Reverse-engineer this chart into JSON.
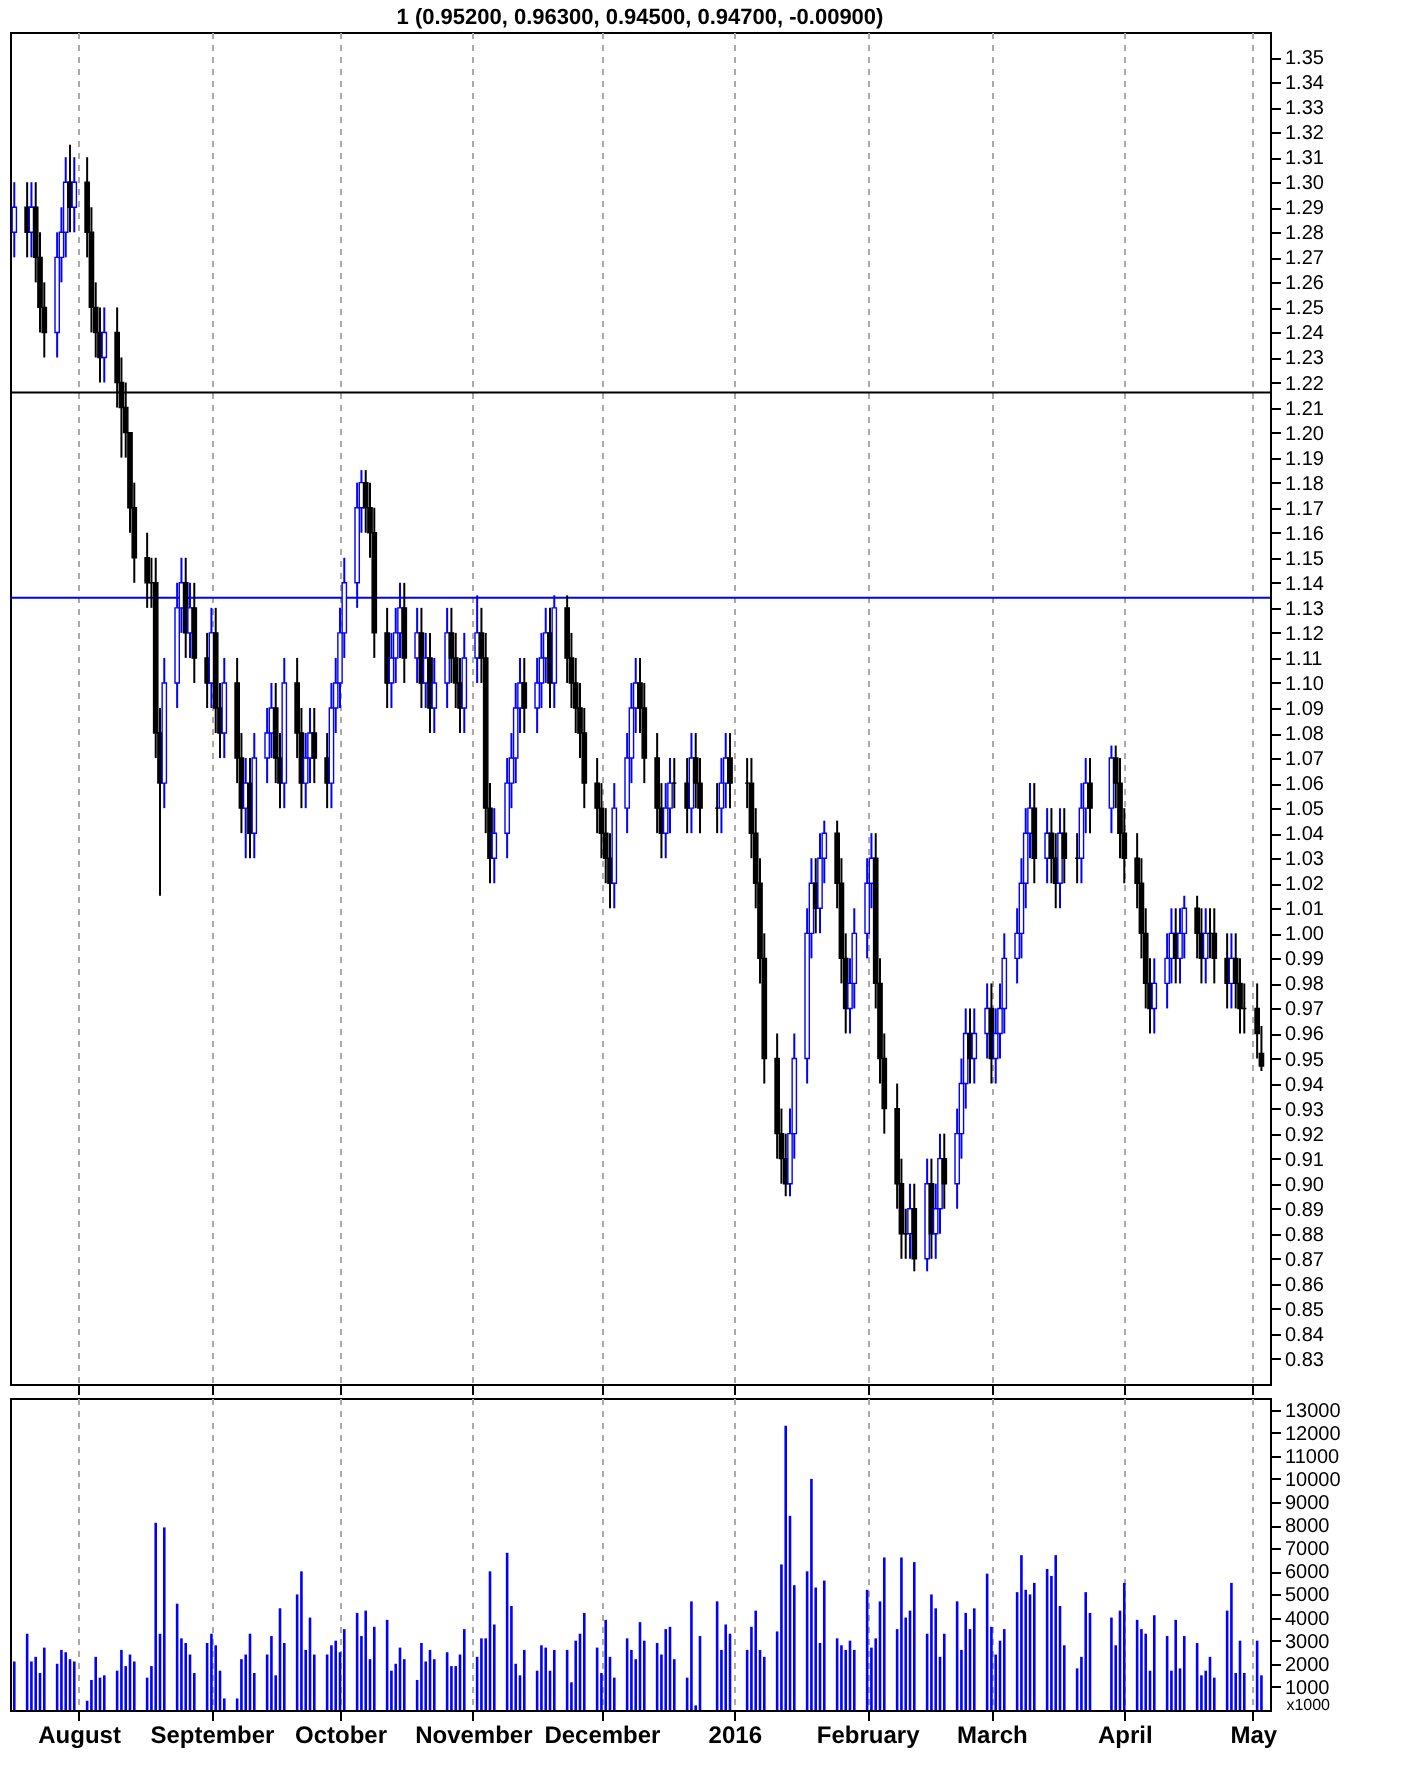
{
  "chart_data": [
    {
      "type": "candlestick",
      "title": "1 (0.95200, 0.96300, 0.94500, 0.94700, -0.00900)",
      "grid": "x",
      "tick_labels": "y",
      "xlim": [
        "2015-07-16",
        "2016-05-05"
      ],
      "xticks": [
        {
          "value": "2015-08-01",
          "label": null
        },
        {
          "value": "2015-09-01",
          "label": null
        },
        {
          "value": "2015-10-01",
          "label": null
        },
        {
          "value": "2015-11-01",
          "label": null
        },
        {
          "value": "2015-12-01",
          "label": null
        },
        {
          "value": "2016-01-01",
          "label": null
        },
        {
          "value": "2016-02-01",
          "label": null
        },
        {
          "value": "2016-03-01",
          "label": null
        },
        {
          "value": "2016-04-01",
          "label": null
        },
        {
          "value": "2016-05-01",
          "label": null
        }
      ],
      "ylim": [
        0.82,
        1.36
      ],
      "yticks": [
        0.83,
        0.84,
        0.85,
        0.86,
        0.87,
        0.88,
        0.89,
        {
          "value": 0.9,
          "label": "0.90"
        },
        0.91,
        0.92,
        0.93,
        0.94,
        0.95,
        0.96,
        0.97,
        0.98,
        0.99,
        {
          "value": 1.0,
          "label": "1.00"
        },
        1.01,
        1.02,
        1.03,
        1.04,
        1.05,
        1.06,
        1.07,
        1.08,
        1.09,
        {
          "value": 1.1,
          "label": "1.10"
        },
        1.11,
        1.12,
        1.13,
        1.14,
        1.15,
        1.16,
        1.17,
        1.18,
        1.19,
        {
          "value": 1.2,
          "label": "1.20"
        },
        1.21,
        1.22,
        1.23,
        1.24,
        1.25,
        1.26,
        1.27,
        1.28,
        1.29,
        {
          "value": 1.3,
          "label": "1.30"
        },
        1.31,
        1.32,
        1.33,
        1.34,
        1.35
      ],
      "ref_lines": [
        {
          "axis": "y",
          "value": 1.216,
          "color": "#000000"
        },
        {
          "axis": "y",
          "value": 1.134,
          "color": "#0000ff"
        }
      ],
      "x": [
        "2015-07-17",
        "2015-07-20",
        "2015-07-21",
        "2015-07-22",
        "2015-07-23",
        "2015-07-24",
        "2015-07-27",
        "2015-07-28",
        "2015-07-29",
        "2015-07-30",
        "2015-07-31",
        "2015-08-03",
        "2015-08-04",
        "2015-08-05",
        "2015-08-06",
        "2015-08-07",
        "2015-08-10",
        "2015-08-11",
        "2015-08-12",
        "2015-08-13",
        "2015-08-14",
        "2015-08-17",
        "2015-08-18",
        "2015-08-19",
        "2015-08-20",
        "2015-08-21",
        "2015-08-24",
        "2015-08-25",
        "2015-08-26",
        "2015-08-27",
        "2015-08-28",
        "2015-08-31",
        "2015-09-01",
        "2015-09-02",
        "2015-09-03",
        "2015-09-04",
        "2015-09-07",
        "2015-09-08",
        "2015-09-09",
        "2015-09-10",
        "2015-09-11",
        "2015-09-14",
        "2015-09-15",
        "2015-09-16",
        "2015-09-17",
        "2015-09-18",
        "2015-09-21",
        "2015-09-22",
        "2015-09-23",
        "2015-09-24",
        "2015-09-25",
        "2015-09-28",
        "2015-09-29",
        "2015-09-30",
        "2015-10-01",
        "2015-10-02",
        "2015-10-05",
        "2015-10-06",
        "2015-10-07",
        "2015-10-08",
        "2015-10-09",
        "2015-10-12",
        "2015-10-13",
        "2015-10-14",
        "2015-10-15",
        "2015-10-16",
        "2015-10-19",
        "2015-10-20",
        "2015-10-21",
        "2015-10-22",
        "2015-10-23",
        "2015-10-26",
        "2015-10-27",
        "2015-10-28",
        "2015-10-29",
        "2015-10-30",
        "2015-11-02",
        "2015-11-03",
        "2015-11-04",
        "2015-11-05",
        "2015-11-06",
        "2015-11-09",
        "2015-11-10",
        "2015-11-11",
        "2015-11-12",
        "2015-11-13",
        "2015-11-16",
        "2015-11-17",
        "2015-11-18",
        "2015-11-19",
        "2015-11-20",
        "2015-11-23",
        "2015-11-24",
        "2015-11-25",
        "2015-11-26",
        "2015-11-27",
        "2015-11-30",
        "2015-12-01",
        "2015-12-02",
        "2015-12-03",
        "2015-12-04",
        "2015-12-07",
        "2015-12-08",
        "2015-12-09",
        "2015-12-10",
        "2015-12-11",
        "2015-12-14",
        "2015-12-15",
        "2015-12-16",
        "2015-12-17",
        "2015-12-18",
        "2015-12-21",
        "2015-12-22",
        "2015-12-23",
        "2015-12-24",
        "2015-12-28",
        "2015-12-29",
        "2015-12-30",
        "2015-12-31",
        "2016-01-04",
        "2016-01-05",
        "2016-01-06",
        "2016-01-07",
        "2016-01-08",
        "2016-01-11",
        "2016-01-12",
        "2016-01-13",
        "2016-01-14",
        "2016-01-15",
        "2016-01-18",
        "2016-01-19",
        "2016-01-20",
        "2016-01-21",
        "2016-01-22",
        "2016-01-25",
        "2016-01-26",
        "2016-01-27",
        "2016-01-28",
        "2016-01-29",
        "2016-02-01",
        "2016-02-02",
        "2016-02-03",
        "2016-02-04",
        "2016-02-05",
        "2016-02-08",
        "2016-02-09",
        "2016-02-10",
        "2016-02-11",
        "2016-02-12",
        "2016-02-15",
        "2016-02-16",
        "2016-02-17",
        "2016-02-18",
        "2016-02-19",
        "2016-02-22",
        "2016-02-23",
        "2016-02-24",
        "2016-02-25",
        "2016-02-26",
        "2016-02-29",
        "2016-03-01",
        "2016-03-02",
        "2016-03-03",
        "2016-03-04",
        "2016-03-07",
        "2016-03-08",
        "2016-03-09",
        "2016-03-10",
        "2016-03-11",
        "2016-03-14",
        "2016-03-15",
        "2016-03-16",
        "2016-03-17",
        "2016-03-18",
        "2016-03-21",
        "2016-03-22",
        "2016-03-23",
        "2016-03-24",
        "2016-03-29",
        "2016-03-30",
        "2016-03-31",
        "2016-04-01",
        "2016-04-04",
        "2016-04-05",
        "2016-04-06",
        "2016-04-07",
        "2016-04-08",
        "2016-04-11",
        "2016-04-12",
        "2016-04-13",
        "2016-04-14",
        "2016-04-15",
        "2016-04-18",
        "2016-04-19",
        "2016-04-20",
        "2016-04-21",
        "2016-04-22",
        "2016-04-25",
        "2016-04-26",
        "2016-04-27",
        "2016-04-28",
        "2016-04-29",
        "2016-05-02",
        "2016-05-03"
      ],
      "ohlc": [
        [
          1.28,
          1.3,
          1.27,
          1.29
        ],
        [
          1.29,
          1.3,
          1.27,
          1.28
        ],
        [
          1.28,
          1.3,
          1.27,
          1.29
        ],
        [
          1.29,
          1.3,
          1.26,
          1.27
        ],
        [
          1.27,
          1.28,
          1.24,
          1.25
        ],
        [
          1.25,
          1.26,
          1.23,
          1.24
        ],
        [
          1.24,
          1.28,
          1.23,
          1.27
        ],
        [
          1.27,
          1.29,
          1.26,
          1.28
        ],
        [
          1.28,
          1.31,
          1.27,
          1.3
        ],
        [
          1.3,
          1.315,
          1.28,
          1.29
        ],
        [
          1.29,
          1.31,
          1.28,
          1.3
        ],
        [
          1.3,
          1.31,
          1.27,
          1.28
        ],
        [
          1.28,
          1.29,
          1.24,
          1.25
        ],
        [
          1.25,
          1.26,
          1.23,
          1.24
        ],
        [
          1.24,
          1.25,
          1.22,
          1.23
        ],
        [
          1.23,
          1.25,
          1.22,
          1.24
        ],
        [
          1.24,
          1.25,
          1.21,
          1.22
        ],
        [
          1.22,
          1.23,
          1.19,
          1.21
        ],
        [
          1.21,
          1.22,
          1.19,
          1.2
        ],
        [
          1.2,
          1.2,
          1.16,
          1.17
        ],
        [
          1.17,
          1.18,
          1.14,
          1.15
        ],
        [
          1.15,
          1.16,
          1.13,
          1.14
        ],
        [
          1.14,
          1.15,
          1.13,
          1.14
        ],
        [
          1.14,
          1.15,
          1.07,
          1.08
        ],
        [
          1.08,
          1.09,
          1.015,
          1.06
        ],
        [
          1.06,
          1.11,
          1.05,
          1.1
        ],
        [
          1.1,
          1.14,
          1.09,
          1.13
        ],
        [
          1.13,
          1.15,
          1.12,
          1.14
        ],
        [
          1.14,
          1.15,
          1.11,
          1.12
        ],
        [
          1.12,
          1.14,
          1.11,
          1.13
        ],
        [
          1.13,
          1.14,
          1.1,
          1.11
        ],
        [
          1.11,
          1.12,
          1.09,
          1.1
        ],
        [
          1.1,
          1.13,
          1.09,
          1.12
        ],
        [
          1.12,
          1.13,
          1.08,
          1.09
        ],
        [
          1.09,
          1.1,
          1.07,
          1.08
        ],
        [
          1.08,
          1.11,
          1.07,
          1.1
        ],
        [
          1.1,
          1.11,
          1.06,
          1.07
        ],
        [
          1.07,
          1.08,
          1.04,
          1.05
        ],
        [
          1.05,
          1.07,
          1.03,
          1.06
        ],
        [
          1.06,
          1.07,
          1.03,
          1.04
        ],
        [
          1.04,
          1.08,
          1.03,
          1.07
        ],
        [
          1.07,
          1.09,
          1.06,
          1.08
        ],
        [
          1.08,
          1.1,
          1.07,
          1.09
        ],
        [
          1.09,
          1.1,
          1.06,
          1.07
        ],
        [
          1.07,
          1.08,
          1.05,
          1.06
        ],
        [
          1.06,
          1.11,
          1.05,
          1.1
        ],
        [
          1.1,
          1.11,
          1.07,
          1.08
        ],
        [
          1.08,
          1.09,
          1.05,
          1.06
        ],
        [
          1.06,
          1.08,
          1.05,
          1.07
        ],
        [
          1.07,
          1.09,
          1.06,
          1.08
        ],
        [
          1.08,
          1.09,
          1.06,
          1.07
        ],
        [
          1.07,
          1.08,
          1.05,
          1.06
        ],
        [
          1.06,
          1.1,
          1.05,
          1.09
        ],
        [
          1.09,
          1.11,
          1.08,
          1.1
        ],
        [
          1.1,
          1.13,
          1.09,
          1.12
        ],
        [
          1.12,
          1.15,
          1.11,
          1.14
        ],
        [
          1.14,
          1.18,
          1.13,
          1.17
        ],
        [
          1.17,
          1.185,
          1.16,
          1.18
        ],
        [
          1.18,
          1.185,
          1.16,
          1.17
        ],
        [
          1.17,
          1.18,
          1.15,
          1.16
        ],
        [
          1.16,
          1.17,
          1.11,
          1.12
        ],
        [
          1.12,
          1.13,
          1.09,
          1.1
        ],
        [
          1.1,
          1.12,
          1.09,
          1.11
        ],
        [
          1.11,
          1.13,
          1.1,
          1.12
        ],
        [
          1.12,
          1.14,
          1.11,
          1.13
        ],
        [
          1.13,
          1.14,
          1.1,
          1.11
        ],
        [
          1.11,
          1.13,
          1.1,
          1.12
        ],
        [
          1.12,
          1.13,
          1.09,
          1.1
        ],
        [
          1.1,
          1.12,
          1.09,
          1.11
        ],
        [
          1.11,
          1.12,
          1.08,
          1.09
        ],
        [
          1.09,
          1.11,
          1.08,
          1.1
        ],
        [
          1.1,
          1.13,
          1.09,
          1.12
        ],
        [
          1.12,
          1.13,
          1.1,
          1.11
        ],
        [
          1.11,
          1.12,
          1.09,
          1.1
        ],
        [
          1.1,
          1.11,
          1.08,
          1.09
        ],
        [
          1.09,
          1.12,
          1.08,
          1.11
        ],
        [
          1.11,
          1.135,
          1.1,
          1.12
        ],
        [
          1.12,
          1.13,
          1.1,
          1.11
        ],
        [
          1.11,
          1.12,
          1.04,
          1.05
        ],
        [
          1.05,
          1.06,
          1.02,
          1.03
        ],
        [
          1.03,
          1.05,
          1.02,
          1.04
        ],
        [
          1.04,
          1.07,
          1.03,
          1.06
        ],
        [
          1.06,
          1.08,
          1.05,
          1.07
        ],
        [
          1.07,
          1.1,
          1.06,
          1.09
        ],
        [
          1.09,
          1.11,
          1.08,
          1.1
        ],
        [
          1.1,
          1.11,
          1.08,
          1.09
        ],
        [
          1.09,
          1.11,
          1.08,
          1.1
        ],
        [
          1.1,
          1.12,
          1.09,
          1.11
        ],
        [
          1.11,
          1.13,
          1.1,
          1.12
        ],
        [
          1.12,
          1.13,
          1.09,
          1.1
        ],
        [
          1.1,
          1.135,
          1.09,
          1.13
        ],
        [
          1.13,
          1.135,
          1.1,
          1.11
        ],
        [
          1.11,
          1.12,
          1.09,
          1.1
        ],
        [
          1.1,
          1.11,
          1.08,
          1.09
        ],
        [
          1.09,
          1.1,
          1.07,
          1.08
        ],
        [
          1.08,
          1.09,
          1.05,
          1.06
        ],
        [
          1.06,
          1.07,
          1.04,
          1.05
        ],
        [
          1.05,
          1.06,
          1.03,
          1.04
        ],
        [
          1.04,
          1.05,
          1.02,
          1.03
        ],
        [
          1.03,
          1.04,
          1.01,
          1.02
        ],
        [
          1.02,
          1.06,
          1.01,
          1.05
        ],
        [
          1.05,
          1.08,
          1.04,
          1.07
        ],
        [
          1.07,
          1.1,
          1.06,
          1.09
        ],
        [
          1.09,
          1.11,
          1.08,
          1.1
        ],
        [
          1.1,
          1.11,
          1.08,
          1.09
        ],
        [
          1.09,
          1.1,
          1.06,
          1.07
        ],
        [
          1.07,
          1.08,
          1.04,
          1.05
        ],
        [
          1.05,
          1.06,
          1.03,
          1.04
        ],
        [
          1.04,
          1.06,
          1.03,
          1.05
        ],
        [
          1.05,
          1.07,
          1.04,
          1.06
        ],
        [
          1.06,
          1.07,
          1.05,
          1.06
        ],
        [
          1.06,
          1.07,
          1.04,
          1.05
        ],
        [
          1.05,
          1.08,
          1.04,
          1.07
        ],
        [
          1.07,
          1.08,
          1.05,
          1.06
        ],
        [
          1.06,
          1.07,
          1.04,
          1.05
        ],
        [
          1.05,
          1.06,
          1.04,
          1.05
        ],
        [
          1.05,
          1.07,
          1.04,
          1.06
        ],
        [
          1.06,
          1.08,
          1.05,
          1.07
        ],
        [
          1.07,
          1.08,
          1.05,
          1.06
        ],
        [
          1.06,
          1.07,
          1.05,
          1.06
        ],
        [
          1.06,
          1.07,
          1.03,
          1.04
        ],
        [
          1.04,
          1.05,
          1.01,
          1.02
        ],
        [
          1.02,
          1.03,
          0.98,
          0.99
        ],
        [
          0.99,
          1.0,
          0.94,
          0.95
        ],
        [
          0.95,
          0.96,
          0.91,
          0.92
        ],
        [
          0.92,
          0.93,
          0.9,
          0.91
        ],
        [
          0.91,
          0.92,
          0.895,
          0.9
        ],
        [
          0.9,
          0.93,
          0.895,
          0.92
        ],
        [
          0.92,
          0.96,
          0.91,
          0.95
        ],
        [
          0.95,
          1.01,
          0.94,
          1.0
        ],
        [
          1.0,
          1.03,
          0.99,
          1.02
        ],
        [
          1.02,
          1.03,
          1.0,
          1.01
        ],
        [
          1.01,
          1.04,
          1.0,
          1.03
        ],
        [
          1.03,
          1.045,
          1.02,
          1.04
        ],
        [
          1.04,
          1.045,
          1.01,
          1.02
        ],
        [
          1.02,
          1.03,
          0.98,
          0.99
        ],
        [
          0.99,
          1.0,
          0.96,
          0.97
        ],
        [
          0.97,
          0.99,
          0.96,
          0.98
        ],
        [
          0.98,
          1.01,
          0.97,
          1.0
        ],
        [
          1.0,
          1.03,
          0.99,
          1.02
        ],
        [
          1.02,
          1.04,
          1.01,
          1.03
        ],
        [
          1.03,
          1.04,
          0.97,
          0.98
        ],
        [
          0.98,
          0.99,
          0.94,
          0.95
        ],
        [
          0.95,
          0.96,
          0.92,
          0.93
        ],
        [
          0.93,
          0.94,
          0.89,
          0.9
        ],
        [
          0.9,
          0.91,
          0.87,
          0.88
        ],
        [
          0.88,
          0.89,
          0.87,
          0.88
        ],
        [
          0.88,
          0.9,
          0.87,
          0.89
        ],
        [
          0.89,
          0.9,
          0.865,
          0.87
        ],
        [
          0.87,
          0.91,
          0.865,
          0.9
        ],
        [
          0.9,
          0.91,
          0.87,
          0.88
        ],
        [
          0.88,
          0.9,
          0.87,
          0.89
        ],
        [
          0.89,
          0.92,
          0.88,
          0.91
        ],
        [
          0.91,
          0.92,
          0.89,
          0.9
        ],
        [
          0.9,
          0.93,
          0.89,
          0.92
        ],
        [
          0.92,
          0.95,
          0.91,
          0.94
        ],
        [
          0.94,
          0.97,
          0.93,
          0.96
        ],
        [
          0.96,
          0.97,
          0.94,
          0.95
        ],
        [
          0.95,
          0.97,
          0.94,
          0.96
        ],
        [
          0.96,
          0.98,
          0.95,
          0.97
        ],
        [
          0.97,
          0.98,
          0.94,
          0.95
        ],
        [
          0.95,
          0.97,
          0.94,
          0.96
        ],
        [
          0.96,
          0.98,
          0.95,
          0.97
        ],
        [
          0.97,
          1.0,
          0.96,
          0.99
        ],
        [
          0.99,
          1.01,
          0.98,
          1.0
        ],
        [
          1.0,
          1.03,
          0.99,
          1.02
        ],
        [
          1.02,
          1.05,
          1.01,
          1.04
        ],
        [
          1.04,
          1.06,
          1.03,
          1.05
        ],
        [
          1.05,
          1.06,
          1.02,
          1.03
        ],
        [
          1.03,
          1.05,
          1.02,
          1.04
        ],
        [
          1.04,
          1.05,
          1.02,
          1.03
        ],
        [
          1.03,
          1.04,
          1.01,
          1.02
        ],
        [
          1.02,
          1.05,
          1.01,
          1.04
        ],
        [
          1.04,
          1.05,
          1.02,
          1.03
        ],
        [
          1.03,
          1.04,
          1.02,
          1.03
        ],
        [
          1.03,
          1.06,
          1.02,
          1.05
        ],
        [
          1.05,
          1.07,
          1.04,
          1.06
        ],
        [
          1.06,
          1.07,
          1.04,
          1.05
        ],
        [
          1.05,
          1.075,
          1.04,
          1.07
        ],
        [
          1.07,
          1.075,
          1.05,
          1.06
        ],
        [
          1.06,
          1.07,
          1.03,
          1.04
        ],
        [
          1.04,
          1.05,
          1.02,
          1.03
        ],
        [
          1.03,
          1.04,
          1.01,
          1.02
        ],
        [
          1.02,
          1.03,
          0.99,
          1.0
        ],
        [
          1.0,
          1.01,
          0.97,
          0.98
        ],
        [
          0.98,
          0.99,
          0.96,
          0.97
        ],
        [
          0.97,
          0.99,
          0.96,
          0.98
        ],
        [
          0.98,
          1.0,
          0.97,
          0.99
        ],
        [
          0.99,
          1.01,
          0.98,
          1.0
        ],
        [
          1.0,
          1.01,
          0.98,
          0.99
        ],
        [
          0.99,
          1.01,
          0.98,
          1.0
        ],
        [
          1.0,
          1.015,
          0.99,
          1.01
        ],
        [
          1.01,
          1.015,
          0.99,
          1.0
        ],
        [
          1.0,
          1.01,
          0.98,
          0.99
        ],
        [
          0.99,
          1.01,
          0.98,
          1.0
        ],
        [
          1.0,
          1.01,
          0.99,
          1.0
        ],
        [
          1.0,
          1.01,
          0.98,
          0.99
        ],
        [
          0.99,
          1.0,
          0.97,
          0.98
        ],
        [
          0.98,
          1.0,
          0.97,
          0.99
        ],
        [
          0.99,
          1.0,
          0.97,
          0.98
        ],
        [
          0.98,
          0.99,
          0.96,
          0.97
        ],
        [
          0.97,
          0.98,
          0.96,
          0.97
        ],
        [
          0.97,
          0.98,
          0.95,
          0.96
        ],
        [
          0.952,
          0.963,
          0.945,
          0.947
        ]
      ],
      "colors": [
        "#0000ff",
        "#000000",
        "#0000ff",
        "#000000",
        "#000000",
        "#000000",
        "#0000ff",
        "#0000ff",
        "#0000ff",
        "#000000",
        "#0000ff",
        "#000000",
        "#000000",
        "#000000",
        "#000000",
        "#0000ff",
        "#000000",
        "#000000",
        "#000000",
        "#000000",
        "#000000",
        "#000000",
        "#000000",
        "#000000",
        "#000000",
        "#0000ff",
        "#0000ff",
        "#0000ff",
        "#000000",
        "#0000ff",
        "#000000",
        "#000000",
        "#0000ff",
        "#000000",
        "#000000",
        "#0000ff",
        "#000000",
        "#000000",
        "#0000ff",
        "#000000",
        "#0000ff",
        "#0000ff",
        "#0000ff",
        "#000000",
        "#000000",
        "#0000ff",
        "#000000",
        "#000000",
        "#0000ff",
        "#0000ff",
        "#000000",
        "#000000",
        "#0000ff",
        "#0000ff",
        "#0000ff",
        "#0000ff",
        "#0000ff",
        "#0000ff",
        "#000000",
        "#000000",
        "#000000",
        "#000000",
        "#0000ff",
        "#0000ff",
        "#0000ff",
        "#000000",
        "#0000ff",
        "#000000",
        "#0000ff",
        "#000000",
        "#0000ff",
        "#0000ff",
        "#000000",
        "#000000",
        "#000000",
        "#0000ff",
        "#0000ff",
        "#000000",
        "#000000",
        "#000000",
        "#0000ff",
        "#0000ff",
        "#0000ff",
        "#0000ff",
        "#0000ff",
        "#000000",
        "#0000ff",
        "#0000ff",
        "#0000ff",
        "#000000",
        "#0000ff",
        "#000000",
        "#000000",
        "#000000",
        "#000000",
        "#000000",
        "#000000",
        "#000000",
        "#000000",
        "#000000",
        "#0000ff",
        "#0000ff",
        "#0000ff",
        "#0000ff",
        "#000000",
        "#000000",
        "#000000",
        "#000000",
        "#0000ff",
        "#0000ff",
        "#000000",
        "#000000",
        "#0000ff",
        "#000000",
        "#000000",
        "#000000",
        "#0000ff",
        "#0000ff",
        "#000000",
        "#000000",
        "#000000",
        "#000000",
        "#000000",
        "#000000",
        "#000000",
        "#000000",
        "#000000",
        "#0000ff",
        "#0000ff",
        "#0000ff",
        "#0000ff",
        "#000000",
        "#0000ff",
        "#0000ff",
        "#000000",
        "#000000",
        "#000000",
        "#0000ff",
        "#0000ff",
        "#0000ff",
        "#0000ff",
        "#000000",
        "#000000",
        "#000000",
        "#000000",
        "#000000",
        "#000000",
        "#0000ff",
        "#000000",
        "#0000ff",
        "#000000",
        "#0000ff",
        "#0000ff",
        "#000000",
        "#0000ff",
        "#0000ff",
        "#0000ff",
        "#000000",
        "#0000ff",
        "#0000ff",
        "#000000",
        "#0000ff",
        "#0000ff",
        "#0000ff",
        "#0000ff",
        "#0000ff",
        "#0000ff",
        "#0000ff",
        "#000000",
        "#0000ff",
        "#000000",
        "#000000",
        "#0000ff",
        "#000000",
        "#000000",
        "#0000ff",
        "#0000ff",
        "#000000",
        "#0000ff",
        "#000000",
        "#000000",
        "#000000",
        "#000000",
        "#000000",
        "#000000",
        "#000000",
        "#0000ff",
        "#0000ff",
        "#0000ff",
        "#000000",
        "#0000ff",
        "#0000ff",
        "#000000",
        "#000000",
        "#0000ff",
        "#000000",
        "#000000",
        "#000000",
        "#0000ff",
        "#000000",
        "#000000",
        "#000000",
        "#000000",
        "#000000"
      ]
    },
    {
      "type": "bar",
      "color": "#0000ff",
      "grid": "x",
      "annotations": [
        "x1000"
      ],
      "xlim": [
        "2015-07-16",
        "2016-05-05"
      ],
      "xticks": [
        {
          "value": "2015-08-01",
          "label": "August"
        },
        {
          "value": "2015-09-01",
          "label": "September"
        },
        {
          "value": "2015-10-01",
          "label": "October"
        },
        {
          "value": "2015-11-01",
          "label": "November"
        },
        {
          "value": "2015-12-01",
          "label": "December"
        },
        {
          "value": "2016-01-01",
          "label": "2016"
        },
        {
          "value": "2016-02-01",
          "label": "February"
        },
        {
          "value": "2016-03-01",
          "label": "March"
        },
        {
          "value": "2016-04-01",
          "label": "April"
        },
        {
          "value": "2016-05-01",
          "label": "May"
        }
      ],
      "ylim": [
        0,
        13500
      ],
      "yticks": [
        1000,
        2000,
        3000,
        4000,
        5000,
        6000,
        7000,
        8000,
        9000,
        10000,
        11000,
        12000,
        13000
      ],
      "x": [
        "2015-07-17",
        "2015-07-20",
        "2015-07-21",
        "2015-07-22",
        "2015-07-23",
        "2015-07-24",
        "2015-07-27",
        "2015-07-28",
        "2015-07-29",
        "2015-07-30",
        "2015-07-31",
        "2015-08-03",
        "2015-08-04",
        "2015-08-05",
        "2015-08-06",
        "2015-08-07",
        "2015-08-10",
        "2015-08-11",
        "2015-08-12",
        "2015-08-13",
        "2015-08-14",
        "2015-08-17",
        "2015-08-18",
        "2015-08-19",
        "2015-08-20",
        "2015-08-21",
        "2015-08-24",
        "2015-08-25",
        "2015-08-26",
        "2015-08-27",
        "2015-08-28",
        "2015-08-31",
        "2015-09-01",
        "2015-09-02",
        "2015-09-03",
        "2015-09-04",
        "2015-09-07",
        "2015-09-08",
        "2015-09-09",
        "2015-09-10",
        "2015-09-11",
        "2015-09-14",
        "2015-09-15",
        "2015-09-16",
        "2015-09-17",
        "2015-09-18",
        "2015-09-21",
        "2015-09-22",
        "2015-09-23",
        "2015-09-24",
        "2015-09-25",
        "2015-09-28",
        "2015-09-29",
        "2015-09-30",
        "2015-10-01",
        "2015-10-02",
        "2015-10-05",
        "2015-10-06",
        "2015-10-07",
        "2015-10-08",
        "2015-10-09",
        "2015-10-12",
        "2015-10-13",
        "2015-10-14",
        "2015-10-15",
        "2015-10-16",
        "2015-10-19",
        "2015-10-20",
        "2015-10-21",
        "2015-10-22",
        "2015-10-23",
        "2015-10-26",
        "2015-10-27",
        "2015-10-28",
        "2015-10-29",
        "2015-10-30",
        "2015-11-02",
        "2015-11-03",
        "2015-11-04",
        "2015-11-05",
        "2015-11-06",
        "2015-11-09",
        "2015-11-10",
        "2015-11-11",
        "2015-11-12",
        "2015-11-13",
        "2015-11-16",
        "2015-11-17",
        "2015-11-18",
        "2015-11-19",
        "2015-11-20",
        "2015-11-23",
        "2015-11-24",
        "2015-11-25",
        "2015-11-26",
        "2015-11-27",
        "2015-11-30",
        "2015-12-01",
        "2015-12-02",
        "2015-12-03",
        "2015-12-04",
        "2015-12-07",
        "2015-12-08",
        "2015-12-09",
        "2015-12-10",
        "2015-12-11",
        "2015-12-14",
        "2015-12-15",
        "2015-12-16",
        "2015-12-17",
        "2015-12-18",
        "2015-12-21",
        "2015-12-22",
        "2015-12-23",
        "2015-12-24",
        "2015-12-28",
        "2015-12-29",
        "2015-12-30",
        "2015-12-31",
        "2016-01-04",
        "2016-01-05",
        "2016-01-06",
        "2016-01-07",
        "2016-01-08",
        "2016-01-11",
        "2016-01-12",
        "2016-01-13",
        "2016-01-14",
        "2016-01-15",
        "2016-01-18",
        "2016-01-19",
        "2016-01-20",
        "2016-01-21",
        "2016-01-22",
        "2016-01-25",
        "2016-01-26",
        "2016-01-27",
        "2016-01-28",
        "2016-01-29",
        "2016-02-01",
        "2016-02-02",
        "2016-02-03",
        "2016-02-04",
        "2016-02-05",
        "2016-02-08",
        "2016-02-09",
        "2016-02-10",
        "2016-02-11",
        "2016-02-12",
        "2016-02-15",
        "2016-02-16",
        "2016-02-17",
        "2016-02-18",
        "2016-02-19",
        "2016-02-22",
        "2016-02-23",
        "2016-02-24",
        "2016-02-25",
        "2016-02-26",
        "2016-02-29",
        "2016-03-01",
        "2016-03-02",
        "2016-03-03",
        "2016-03-04",
        "2016-03-07",
        "2016-03-08",
        "2016-03-09",
        "2016-03-10",
        "2016-03-11",
        "2016-03-14",
        "2016-03-15",
        "2016-03-16",
        "2016-03-17",
        "2016-03-18",
        "2016-03-21",
        "2016-03-22",
        "2016-03-23",
        "2016-03-24",
        "2016-03-29",
        "2016-03-30",
        "2016-03-31",
        "2016-04-01",
        "2016-04-04",
        "2016-04-05",
        "2016-04-06",
        "2016-04-07",
        "2016-04-08",
        "2016-04-11",
        "2016-04-12",
        "2016-04-13",
        "2016-04-14",
        "2016-04-15",
        "2016-04-18",
        "2016-04-19",
        "2016-04-20",
        "2016-04-21",
        "2016-04-22",
        "2016-04-25",
        "2016-04-26",
        "2016-04-27",
        "2016-04-28",
        "2016-04-29",
        "2016-05-02",
        "2016-05-03"
      ],
      "values": [
        2100,
        3300,
        2100,
        2300,
        1600,
        2700,
        2000,
        2600,
        2500,
        2200,
        2100,
        400,
        1300,
        2300,
        1400,
        1500,
        1700,
        2600,
        1900,
        2400,
        2100,
        1400,
        1900,
        8100,
        3300,
        7900,
        4600,
        3100,
        2900,
        2400,
        1600,
        2900,
        3300,
        2800,
        1700,
        500,
        500,
        2200,
        2400,
        3300,
        1600,
        2400,
        3200,
        1500,
        4400,
        2900,
        5000,
        6000,
        2600,
        4000,
        2400,
        2400,
        2800,
        3000,
        2500,
        3500,
        4200,
        3200,
        4300,
        2200,
        3600,
        3900,
        1700,
        2000,
        2700,
        2200,
        1300,
        2900,
        2100,
        2600,
        2200,
        2500,
        1900,
        1900,
        2400,
        3500,
        2300,
        3100,
        3100,
        6000,
        3700,
        6800,
        4500,
        2000,
        1500,
        2600,
        1700,
        2800,
        2700,
        1700,
        2600,
        2600,
        1200,
        3000,
        3300,
        4200,
        2700,
        1600,
        3900,
        2300,
        1400,
        3100,
        2600,
        2200,
        3800,
        3000,
        2900,
        2400,
        3500,
        3600,
        2200,
        1400,
        4700,
        200,
        3200,
        4700,
        2600,
        3700,
        3300,
        2600,
        3600,
        4300,
        2600,
        2300,
        3400,
        6300,
        12300,
        8400,
        5400,
        6000,
        10000,
        5300,
        2900,
        5600,
        3100,
        2800,
        2600,
        3000,
        2600,
        5200,
        2700,
        3100,
        4700,
        6600,
        3500,
        6600,
        4000,
        4300,
        6400,
        3300,
        5000,
        4400,
        2300,
        3300,
        4700,
        2600,
        4200,
        3500,
        4400,
        5900,
        3600,
        2400,
        3000,
        3500,
        5100,
        6700,
        5200,
        5000,
        5500,
        6100,
        5800,
        6700,
        4500,
        2800,
        1800,
        2300,
        5100,
        4200,
        4000,
        2800,
        4300,
        5500,
        3900,
        3500,
        3300,
        1700,
        4100,
        3200,
        1700,
        3900,
        1800,
        3200,
        2900,
        1500,
        1700,
        2300,
        1400,
        4300,
        5500,
        1600,
        3000,
        1600,
        3000,
        1500
      ]
    }
  ]
}
